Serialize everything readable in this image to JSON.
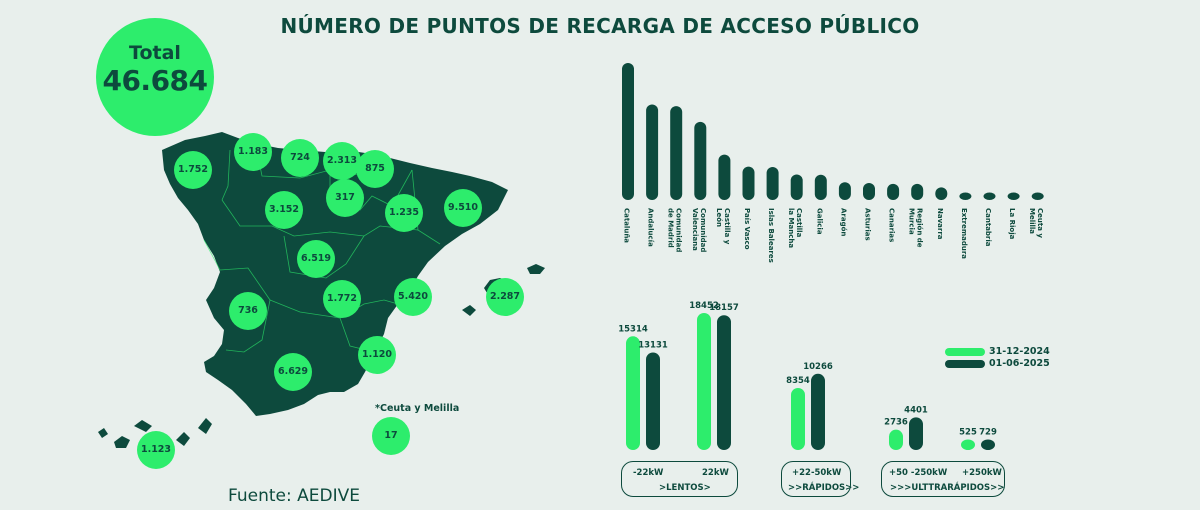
{
  "title": "NÚMERO DE PUNTOS DE RECARGA DE ACCESO PÚBLICO",
  "total": {
    "label": "Total",
    "value": "46.684"
  },
  "source": "Fuente: AEDIVE",
  "ceuta_note": "*Ceuta y Melilla",
  "colors": {
    "accent": "#2ded6c",
    "dark": "#0d4a3d",
    "background": "#e8efec"
  },
  "map_values": [
    {
      "region": "Galicia",
      "value": "1.752"
    },
    {
      "region": "Asturias",
      "value": "1.183"
    },
    {
      "region": "Cantabria",
      "value": "724"
    },
    {
      "region": "País Vasco",
      "value": "2.313"
    },
    {
      "region": "Navarra",
      "value": "875"
    },
    {
      "region": "La Rioja",
      "value": "317"
    },
    {
      "region": "Castilla y León",
      "value": "3.152"
    },
    {
      "region": "Aragón",
      "value": "1.235"
    },
    {
      "region": "Cataluña",
      "value": "9.510"
    },
    {
      "region": "Comunidad de Madrid",
      "value": "6.519"
    },
    {
      "region": "Extremadura",
      "value": "736"
    },
    {
      "region": "Castilla la Mancha",
      "value": "1.772"
    },
    {
      "region": "Comunidad Valenciana",
      "value": "5.420"
    },
    {
      "region": "Islas Baleares",
      "value": "2.287"
    },
    {
      "region": "Región de Murcia",
      "value": "1.120"
    },
    {
      "region": "Andalucía",
      "value": "6.629"
    },
    {
      "region": "Canarias",
      "value": "1.123"
    },
    {
      "region": "Ceuta y Melilla",
      "value": "17"
    }
  ],
  "chart_data": [
    {
      "type": "bar",
      "categories": [
        "Cataluña",
        "Andalucía",
        "Comunidad de Madrid",
        "Comunidad Valenciana",
        "Castilla y León",
        "País Vasco",
        "Islas Baleares",
        "Castilla la Mancha",
        "Galicia",
        "Aragón",
        "Asturias",
        "Canarias",
        "Región de Murcia",
        "Navarra",
        "Extremadura",
        "Cantabria",
        "La Rioja",
        "Ceuta y Melilla"
      ],
      "category_lines": [
        [
          "Cataluña"
        ],
        [
          "Andalucía"
        ],
        [
          "Comunidad",
          "de Madrid"
        ],
        [
          "Comunidad",
          "Valenciana"
        ],
        [
          "Castilla y",
          "León"
        ],
        [
          "País Vasco"
        ],
        [
          "Islas Baleares"
        ],
        [
          "Castilla",
          "la Mancha"
        ],
        [
          "Galicia"
        ],
        [
          "Aragón"
        ],
        [
          "Asturias"
        ],
        [
          "Canarias"
        ],
        [
          "Región de",
          "Murcia"
        ],
        [
          "Navarra"
        ],
        [
          "Extremadura"
        ],
        [
          "Cantabria"
        ],
        [
          "La Rioja"
        ],
        [
          "Ceuta y",
          "Melilla"
        ]
      ],
      "values": [
        9510,
        6629,
        6519,
        5420,
        3152,
        2313,
        2287,
        1772,
        1752,
        1235,
        1183,
        1123,
        1120,
        875,
        736,
        724,
        317,
        17
      ],
      "color": "#0d4a3d"
    },
    {
      "type": "bar",
      "series": [
        {
          "name": "31-12-2024",
          "color": "#2ded6c",
          "values": [
            15314,
            18452,
            8354,
            2736,
            525
          ]
        },
        {
          "name": "01-06-2025",
          "color": "#0d4a3d",
          "values": [
            13131,
            18157,
            10266,
            4401,
            729
          ]
        }
      ],
      "groups": [
        {
          "label": ">LENTOS>",
          "subcategories": [
            "-22kW",
            "22kW"
          ],
          "bars": [
            0,
            1
          ]
        },
        {
          "label": ">>RÁPIDOS>>",
          "subcategories": [
            "+22-50kW"
          ],
          "bars": [
            2
          ]
        },
        {
          "label": ">>>ULTTRARÁPIDOS>>",
          "subcategories": [
            "+50 -250kW",
            "+250kW"
          ],
          "bars": [
            3,
            4
          ]
        }
      ],
      "legend_position": "top-right"
    }
  ]
}
